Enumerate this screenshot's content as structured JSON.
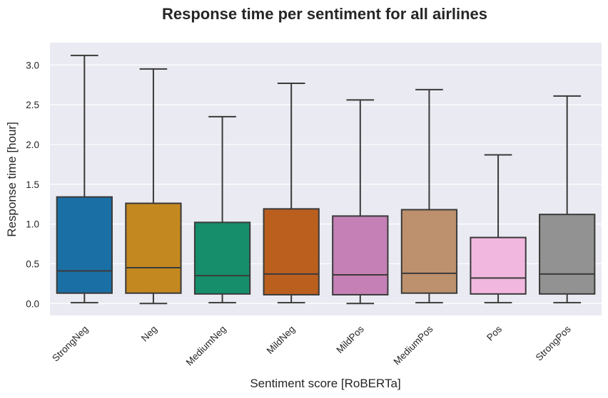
{
  "chart_data": {
    "type": "box",
    "title": "Response time per sentiment for all airlines",
    "xlabel": "Sentiment score [RoBERTa]",
    "ylabel": "Response time [hour]",
    "ylim": [
      -0.15,
      3.28
    ],
    "yticks": [
      0.0,
      0.5,
      1.0,
      1.5,
      2.0,
      2.5,
      3.0
    ],
    "ytick_labels": [
      "0.0",
      "0.5",
      "1.0",
      "1.5",
      "2.0",
      "2.5",
      "3.0"
    ],
    "grid": true,
    "categories": [
      "StrongNeg",
      "Neg",
      "MediumNeg",
      "MildNeg",
      "MildPos",
      "MediumPos",
      "Pos",
      "StrongPos"
    ],
    "boxes": [
      {
        "name": "StrongNeg",
        "whislo": 0.01,
        "q1": 0.13,
        "median": 0.41,
        "q3": 1.34,
        "whishi": 3.12,
        "color": "#1a6fa4"
      },
      {
        "name": "Neg",
        "whislo": 0.0,
        "q1": 0.13,
        "median": 0.45,
        "q3": 1.26,
        "whishi": 2.95,
        "color": "#c38820"
      },
      {
        "name": "MediumNeg",
        "whislo": 0.01,
        "q1": 0.12,
        "median": 0.35,
        "q3": 1.02,
        "whishi": 2.35,
        "color": "#168e6b"
      },
      {
        "name": "MildNeg",
        "whislo": 0.01,
        "q1": 0.11,
        "median": 0.37,
        "q3": 1.19,
        "whishi": 2.77,
        "color": "#bb5f1f"
      },
      {
        "name": "MildPos",
        "whislo": 0.0,
        "q1": 0.11,
        "median": 0.36,
        "q3": 1.1,
        "whishi": 2.56,
        "color": "#c580b5"
      },
      {
        "name": "MediumPos",
        "whislo": 0.01,
        "q1": 0.13,
        "median": 0.38,
        "q3": 1.18,
        "whishi": 2.69,
        "color": "#bd916d"
      },
      {
        "name": "Pos",
        "whislo": 0.01,
        "q1": 0.12,
        "median": 0.32,
        "q3": 0.83,
        "whishi": 1.87,
        "color": "#f2b7df"
      },
      {
        "name": "StrongPos",
        "whislo": 0.01,
        "q1": 0.12,
        "median": 0.37,
        "q3": 1.12,
        "whishi": 2.61,
        "color": "#929292"
      }
    ],
    "colors": {
      "plot_background": "#eaeaf2",
      "grid": "#ffffff",
      "edge": "#3a3a3a",
      "text": "#262626"
    }
  }
}
